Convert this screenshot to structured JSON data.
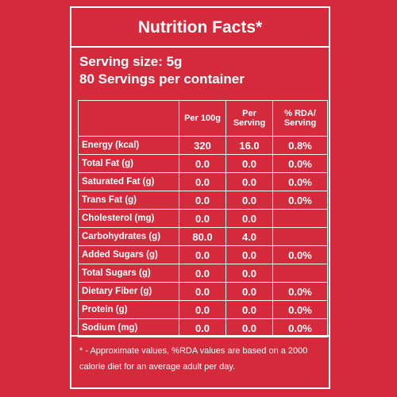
{
  "title": "Nutrition Facts*",
  "serving_size": "Serving size: 5g",
  "servings": "80 Servings per container",
  "table": {
    "header": [
      "Per 100g",
      "Per Serving",
      "% RDA/ Serving"
    ],
    "rows": [
      [
        "Energy (kcal)",
        "320",
        "16.0",
        "0.8%"
      ],
      [
        "Total Fat (g)",
        "0.0",
        "0.0",
        "0.0%"
      ],
      [
        "Saturated Fat (g)",
        "0.0",
        "0.0",
        "0.0%"
      ],
      [
        "Trans Fat (g)",
        "0.0",
        "0.0",
        "0.0%"
      ],
      [
        "Cholesterol (mg)",
        "0.0",
        "0.0",
        null
      ],
      [
        "Carbohydrates (g)",
        "80.0",
        "4.0",
        null
      ],
      [
        "Added Sugars (g)",
        "0.0",
        "0.0",
        "0.0%"
      ],
      [
        "Total Sugars (g)",
        "0.0",
        "0.0",
        null
      ],
      [
        "Dietary Fiber (g)",
        "0.0",
        "0.0",
        "0.0%"
      ],
      [
        "Protein (g)",
        "0.0",
        "0.0",
        "0.0%"
      ],
      [
        "Sodium (mg)",
        "0.0",
        "0.0",
        "0.0%"
      ]
    ]
  },
  "footnote": "* - Approximate values, %RDA values are based on a 2000 calorie diet for an average adult per day."
}
